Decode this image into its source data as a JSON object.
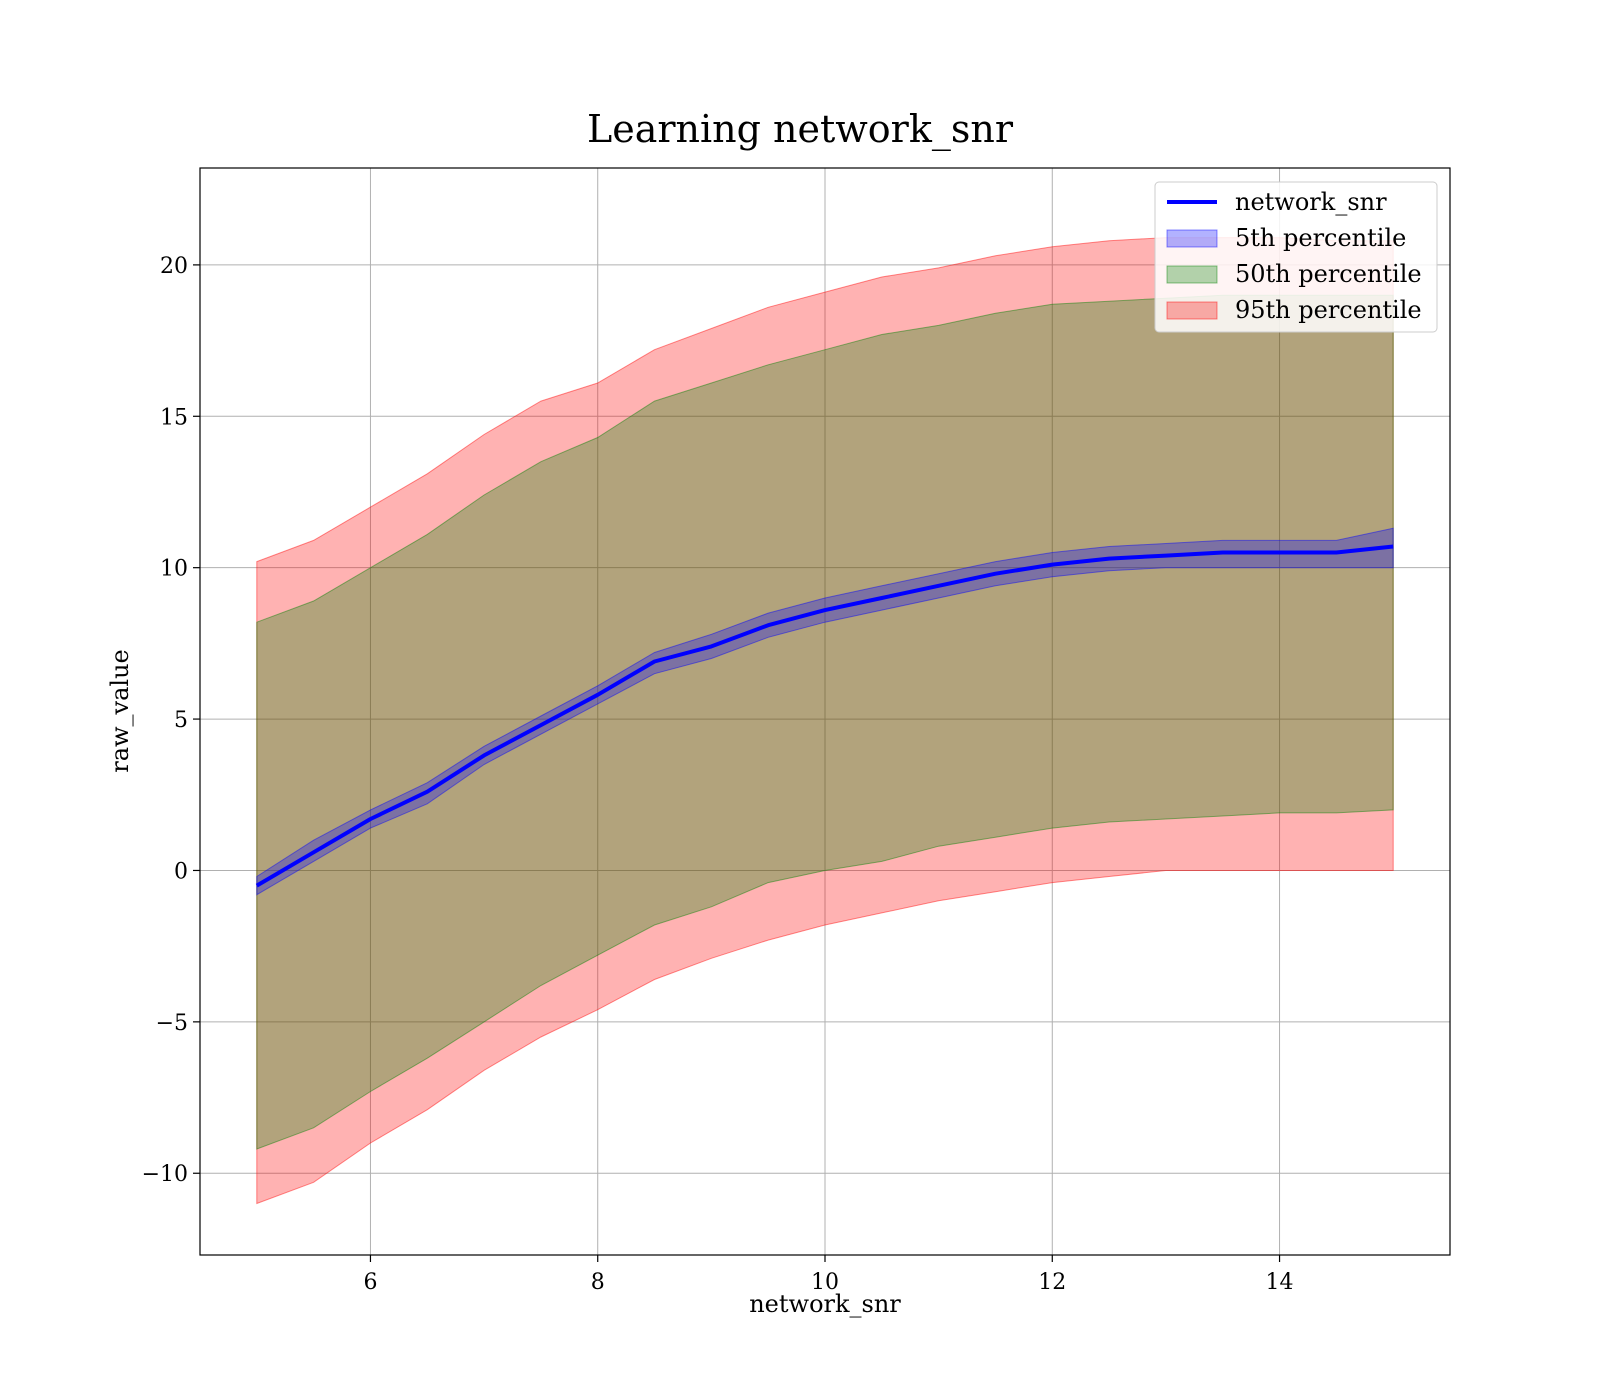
{
  "chart_data": {
    "type": "area",
    "title": "Learning network_snr",
    "xlabel": "network_snr",
    "ylabel": "raw_value",
    "xlim": [
      4.5,
      15.5
    ],
    "ylim": [
      -12.7,
      23.2
    ],
    "xticks": [
      6,
      8,
      10,
      12,
      14
    ],
    "yticks": [
      -10,
      -5,
      0,
      5,
      10,
      15,
      20
    ],
    "ytick_labels": [
      "−10",
      "−5",
      "0",
      "5",
      "10",
      "15",
      "20"
    ],
    "grid": true,
    "legend_placement": "top-right",
    "x": [
      5,
      5.5,
      6,
      6.5,
      7,
      7.5,
      8,
      8.5,
      9,
      9.5,
      10,
      10.5,
      11,
      11.5,
      12,
      12.5,
      13,
      13.5,
      14,
      14.5,
      15
    ],
    "series": [
      {
        "name": "network_snr",
        "kind": "line",
        "color": "#0000ff",
        "values": [
          -0.5,
          0.6,
          1.7,
          2.6,
          3.8,
          4.8,
          5.8,
          6.9,
          7.4,
          8.1,
          8.6,
          9.0,
          9.4,
          9.8,
          10.1,
          10.3,
          10.4,
          10.5,
          10.5,
          10.5,
          10.7
        ]
      },
      {
        "name": "5th percentile",
        "kind": "band",
        "color": "#0000ff",
        "opacity": 0.3,
        "lower": [
          -0.8,
          0.3,
          1.4,
          2.2,
          3.5,
          4.5,
          5.5,
          6.5,
          7.0,
          7.7,
          8.2,
          8.6,
          9.0,
          9.4,
          9.7,
          9.9,
          10.0,
          10.0,
          10.0,
          10.0,
          10.0
        ],
        "upper": [
          -0.2,
          1.0,
          2.0,
          2.9,
          4.1,
          5.1,
          6.1,
          7.2,
          7.8,
          8.5,
          9.0,
          9.4,
          9.8,
          10.2,
          10.5,
          10.7,
          10.8,
          10.9,
          10.9,
          10.9,
          11.3
        ]
      },
      {
        "name": "50th percentile",
        "kind": "band",
        "color": "#008000",
        "opacity": 0.3,
        "lower": [
          -9.2,
          -8.5,
          -7.3,
          -6.2,
          -5.0,
          -3.8,
          -2.8,
          -1.8,
          -1.2,
          -0.4,
          0.0,
          0.3,
          0.8,
          1.1,
          1.4,
          1.6,
          1.7,
          1.8,
          1.9,
          1.9,
          2.0
        ],
        "upper": [
          8.2,
          8.9,
          10.0,
          11.1,
          12.4,
          13.5,
          14.3,
          15.5,
          16.1,
          16.7,
          17.2,
          17.7,
          18.0,
          18.4,
          18.7,
          18.8,
          18.9,
          19.0,
          19.0,
          19.0,
          19.0
        ]
      },
      {
        "name": "95th percentile",
        "kind": "band",
        "color": "#ff0000",
        "opacity": 0.3,
        "lower": [
          -11.0,
          -10.3,
          -9.0,
          -7.9,
          -6.6,
          -5.5,
          -4.6,
          -3.6,
          -2.9,
          -2.3,
          -1.8,
          -1.4,
          -1.0,
          -0.7,
          -0.4,
          -0.2,
          0.0,
          0.0,
          0.0,
          0.0,
          0.0
        ],
        "upper": [
          10.2,
          10.9,
          12.0,
          13.1,
          14.4,
          15.5,
          16.1,
          17.2,
          17.9,
          18.6,
          19.1,
          19.6,
          19.9,
          20.3,
          20.6,
          20.8,
          20.9,
          20.9,
          20.9,
          20.8,
          20.8
        ]
      }
    ]
  }
}
